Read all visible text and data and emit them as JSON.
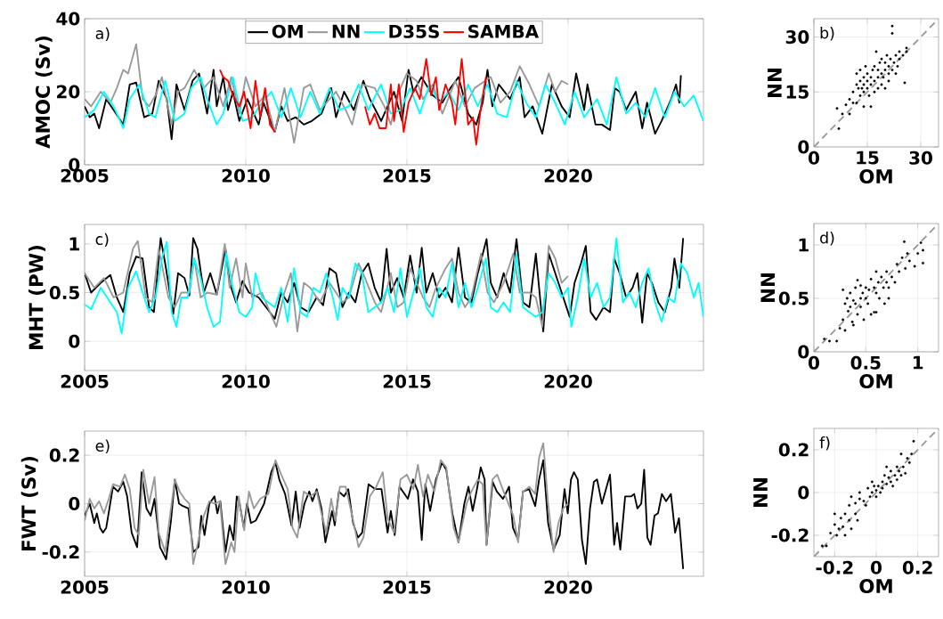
{
  "chart_data": [
    {
      "type": "line",
      "ylabel": "AMOC (Sv)",
      "annotations": [
        "a)"
      ],
      "xlim": [
        2005,
        2024.2
      ],
      "xticks": [
        2005,
        2010,
        2015,
        2020
      ],
      "ylim": [
        0,
        40
      ],
      "yticks": [
        0,
        20,
        40
      ],
      "grid": true,
      "legend": "top",
      "series": [
        {
          "name": "OM",
          "color": "#000000",
          "x": [
            2005.0,
            2005.16,
            2005.3,
            2005.45,
            2005.67,
            2005.9,
            2006.2,
            2006.4,
            2006.6,
            2006.85,
            2007.1,
            2007.3,
            2007.55,
            2007.7,
            2007.85,
            2008.1,
            2008.35,
            2008.55,
            2008.8,
            2009.0,
            2009.1,
            2009.3,
            2009.45,
            2009.6,
            2009.8,
            2010.05,
            2010.4,
            2010.55,
            2010.9,
            2011.1,
            2011.3,
            2011.55,
            2011.8,
            2012.05,
            2012.35,
            2012.65,
            2012.8,
            2013.05,
            2013.35,
            2013.65,
            2013.85,
            2014.2,
            2014.6,
            2014.85,
            2015.05,
            2015.2,
            2015.45,
            2015.8,
            2016.1,
            2016.35,
            2016.6,
            2016.9,
            2017.15,
            2017.35,
            2017.5,
            2017.65,
            2017.85,
            2018.2,
            2018.5,
            2018.65,
            2018.9,
            2019.2,
            2019.5,
            2019.8,
            2020.05,
            2020.25,
            2020.5,
            2020.6,
            2020.85,
            2021.05,
            2021.3,
            2021.45,
            2021.6,
            2021.8,
            2022.1,
            2022.3,
            2022.45,
            2022.7,
            2022.9,
            2023.2,
            2023.35,
            2023.45,
            2023.5
          ],
          "values": [
            16,
            13,
            14,
            10,
            18,
            15,
            11,
            22,
            22.5,
            13,
            14,
            23,
            18,
            7,
            22,
            15,
            23,
            25,
            14,
            26,
            16,
            24,
            15,
            20,
            12,
            18,
            11,
            17,
            9,
            16,
            12,
            13,
            11,
            12,
            14,
            21,
            13,
            20,
            15,
            23,
            18,
            12,
            20,
            12,
            26,
            20,
            24,
            19,
            17,
            21,
            24,
            14,
            11,
            17,
            26,
            16,
            22,
            18,
            24,
            13,
            16,
            8.5,
            22,
            16,
            13,
            25,
            15,
            22,
            11,
            11,
            9.5,
            21,
            20,
            15,
            20,
            10,
            17,
            8.5,
            12,
            18,
            22,
            17,
            24.5
          ]
        },
        {
          "name": "NN",
          "color": "#999999",
          "x": [
            2005.0,
            2005.2,
            2005.5,
            2005.8,
            2006.0,
            2006.2,
            2006.35,
            2006.6,
            2006.8,
            2007.0,
            2007.2,
            2007.4,
            2007.7,
            2007.9,
            2008.1,
            2008.4,
            2008.7,
            2009.0,
            2009.3,
            2009.55,
            2009.8,
            2010.0,
            2010.3,
            2010.6,
            2010.9,
            2011.2,
            2011.5,
            2011.8,
            2012.0,
            2012.3,
            2012.5,
            2012.8,
            2013.1,
            2013.3,
            2013.6,
            2014.0,
            2014.3,
            2014.5,
            2014.7,
            2015.0,
            2015.3,
            2015.5,
            2015.8,
            2016.1,
            2016.5,
            2016.8,
            2017.1,
            2017.6,
            2017.9,
            2018.2,
            2018.5,
            2018.8,
            2019.1,
            2019.4,
            2019.6,
            2019.8,
            2020.0
          ],
          "values": [
            18,
            16,
            20,
            17,
            21,
            26,
            25,
            33,
            18,
            16,
            19,
            24,
            11,
            20,
            21,
            26,
            21,
            24,
            16,
            24,
            14,
            24,
            16,
            19,
            9,
            21,
            6,
            21,
            22,
            15,
            17,
            20,
            15,
            11,
            22,
            21,
            16,
            11,
            19,
            25,
            23,
            18,
            22,
            14,
            23,
            16,
            21,
            24,
            17,
            20,
            27,
            22,
            16,
            25,
            20,
            23,
            22
          ]
        },
        {
          "name": "D35S",
          "color": "#00ffff",
          "x": [
            2005.0,
            2005.3,
            2005.6,
            2005.9,
            2006.2,
            2006.4,
            2006.7,
            2007.0,
            2007.2,
            2007.5,
            2007.8,
            2008.1,
            2008.3,
            2008.6,
            2008.8,
            2009.1,
            2009.3,
            2009.6,
            2009.9,
            2010.2,
            2010.5,
            2010.8,
            2011.1,
            2011.4,
            2011.7,
            2012.0,
            2012.3,
            2012.6,
            2012.9,
            2013.2,
            2013.5,
            2013.8,
            2014.2,
            2014.5,
            2014.8,
            2015.1,
            2015.4,
            2015.7,
            2016.0,
            2016.3,
            2016.6,
            2016.9,
            2017.2,
            2017.5,
            2017.8,
            2018.1,
            2018.4,
            2018.7,
            2019.0,
            2019.3,
            2019.6,
            2019.9,
            2020.2,
            2020.5,
            2020.9,
            2021.2,
            2021.5,
            2021.8,
            2022.1,
            2022.4,
            2022.7,
            2023.0,
            2023.3,
            2023.6,
            2023.9,
            2024.2
          ],
          "values": [
            13,
            15,
            20,
            16,
            10,
            18,
            22,
            14,
            13,
            23,
            12,
            14,
            21,
            24,
            18,
            11,
            14,
            24,
            12,
            13,
            17,
            20,
            13,
            21,
            13,
            20,
            14,
            21,
            15,
            16,
            22,
            15,
            22,
            14,
            15,
            21,
            14,
            22,
            17,
            20,
            15,
            22,
            16,
            22,
            14,
            13,
            23,
            17,
            13,
            22,
            17,
            11,
            20,
            13,
            18,
            11,
            24,
            14,
            17,
            13,
            21,
            13,
            20,
            16,
            19,
            12
          ]
        },
        {
          "name": "SAMBA",
          "color": "#ff0000",
          "x": [
            2009.2,
            2009.3,
            2009.45,
            2009.6,
            2009.8,
            2009.95,
            2010.15,
            2010.3,
            2010.45,
            2010.6,
            2010.75,
            2010.9,
            2012.0,
            2013.7,
            2013.85,
            2014.0,
            2014.15,
            2014.35,
            2014.5,
            2014.6,
            2014.75,
            2014.9,
            2015.05,
            2015.25,
            2015.4,
            2015.6,
            2015.75,
            2015.9,
            2016.0,
            2016.2,
            2016.4,
            2016.5,
            2016.7,
            2016.9,
            2017.05,
            2017.15,
            2017.3,
            2017.45
          ],
          "values": [
            26,
            24,
            23,
            19,
            16,
            20,
            10,
            23,
            13,
            21,
            11,
            9,
            null,
            16,
            11,
            14,
            10,
            10,
            22,
            12,
            22,
            9,
            17,
            21,
            18,
            29,
            19,
            24,
            15,
            22,
            17,
            11,
            29,
            11,
            13,
            5.5,
            16,
            24
          ]
        }
      ]
    },
    {
      "type": "scatter",
      "xlabel": "OM",
      "ylabel": "NN",
      "annotations": [
        "b)"
      ],
      "xlim": [
        0,
        35
      ],
      "xticks": [
        0,
        15,
        30
      ],
      "ylim": [
        0,
        35
      ],
      "yticks": [
        0,
        15,
        30
      ],
      "grid": true,
      "series": [
        {
          "color": "#000000",
          "marker": "circle",
          "x": [
            6.5,
            7,
            8,
            9,
            10,
            10,
            11,
            11,
            12,
            12,
            12.5,
            13,
            13,
            13,
            13.5,
            14,
            14,
            14,
            14.5,
            15,
            15,
            15,
            15.5,
            16,
            16,
            16,
            16.5,
            17,
            17,
            17,
            17.5,
            18,
            18,
            18,
            18.5,
            19,
            19,
            19,
            19.5,
            20,
            20,
            20,
            20.5,
            21,
            21,
            21,
            21.5,
            22,
            22,
            22,
            22.5,
            23,
            23,
            23.5,
            24,
            24,
            25,
            25.5,
            26,
            26,
            14,
            12
          ],
          "values": [
            10.5,
            5,
            9,
            11.5,
            9,
            13,
            12,
            15,
            17,
            20,
            16,
            14,
            18,
            21,
            16,
            15,
            17,
            19,
            22,
            16,
            18,
            20,
            14,
            11,
            17,
            19,
            21,
            15,
            18,
            22,
            26,
            16,
            19,
            21,
            23,
            17,
            20,
            24,
            19,
            16,
            21,
            23,
            25,
            18,
            20,
            22,
            24,
            21,
            33,
            31,
            23,
            20,
            25,
            22,
            24,
            26,
            25,
            17.5,
            27,
            26,
            11,
            12
          ]
        },
        {
          "type": "line",
          "color": "#999999",
          "line_style": "dashed",
          "marker": "none",
          "x": [
            0,
            35
          ],
          "values": [
            0,
            35
          ]
        }
      ]
    },
    {
      "type": "line",
      "ylabel": "MHT (PW)",
      "annotations": [
        "c)"
      ],
      "xlim": [
        2005,
        2024.2
      ],
      "xticks": [
        2005,
        2010,
        2015,
        2020
      ],
      "ylim": [
        -0.3,
        1.2
      ],
      "yticks": [
        0,
        0.5,
        1
      ],
      "grid": true,
      "series": [
        {
          "color": "#000000",
          "x": [
            2005.0,
            2005.2,
            2005.5,
            2005.8,
            2006.0,
            2006.2,
            2006.4,
            2006.6,
            2006.8,
            2007.0,
            2007.15,
            2007.36,
            2007.5,
            2007.75,
            2007.9,
            2008.1,
            2008.25,
            2008.37,
            2008.5,
            2008.7,
            2008.9,
            2009.1,
            2009.37,
            2009.5,
            2009.7,
            2009.9,
            2010.1,
            2010.4,
            2010.7,
            2010.9,
            2011.1,
            2011.3,
            2011.5,
            2011.7,
            2011.95,
            2012.2,
            2012.4,
            2012.6,
            2012.8,
            2013.0,
            2013.2,
            2013.4,
            2013.6,
            2013.8,
            2014.0,
            2014.2,
            2014.37,
            2014.5,
            2014.7,
            2014.9,
            2015.1,
            2015.3,
            2015.46,
            2015.6,
            2015.8,
            2016.0,
            2016.2,
            2016.4,
            2016.6,
            2016.8,
            2017.0,
            2017.2,
            2017.47,
            2017.6,
            2017.8,
            2018.0,
            2018.2,
            2018.4,
            2018.6,
            2018.8,
            2019.0,
            2019.23,
            2019.4,
            2019.6,
            2019.8,
            2020.05,
            2020.2,
            2020.4,
            2020.55,
            2020.7,
            2020.87,
            2021.1,
            2021.3,
            2021.43,
            2021.6,
            2021.8,
            2022.0,
            2022.15,
            2022.3,
            2022.45,
            2022.6,
            2022.8,
            2023.0,
            2023.2,
            2023.3,
            2023.45,
            2023.57
          ],
          "values": [
            0.7,
            0.5,
            0.6,
            0.68,
            0.45,
            0.3,
            0.7,
            0.87,
            0.85,
            0.35,
            0.3,
            1.06,
            0.8,
            0.28,
            0.7,
            0.65,
            0.47,
            1.06,
            0.95,
            0.5,
            0.7,
            0.48,
            0.95,
            0.6,
            0.4,
            0.62,
            0.5,
            0.45,
            0.32,
            0.23,
            0.5,
            0.4,
            0.6,
            0.35,
            0.3,
            0.45,
            0.37,
            0.75,
            0.7,
            0.35,
            0.5,
            0.4,
            0.7,
            0.8,
            0.55,
            0.4,
            0.95,
            0.5,
            0.65,
            0.45,
            0.88,
            0.5,
            0.96,
            0.5,
            0.7,
            0.45,
            0.55,
            0.4,
            0.96,
            0.45,
            0.4,
            0.7,
            1.05,
            0.6,
            0.45,
            0.7,
            0.5,
            1.05,
            0.4,
            0.35,
            0.9,
            0.1,
            0.9,
            0.7,
            0.5,
            0.25,
            0.6,
            0.8,
            0.98,
            0.3,
            0.22,
            0.35,
            0.3,
            0.85,
            0.7,
            0.45,
            0.55,
            0.7,
            0.19,
            0.7,
            0.6,
            0.4,
            0.3,
            0.55,
            0.85,
            0.55,
            1.06
          ]
        },
        {
          "color": "#999999",
          "x": [
            2005.0,
            2005.3,
            2005.6,
            2005.9,
            2006.2,
            2006.5,
            2006.65,
            2006.9,
            2007.1,
            2007.3,
            2007.6,
            2007.8,
            2008.0,
            2008.25,
            2008.4,
            2008.6,
            2008.8,
            2009.1,
            2009.35,
            2009.5,
            2009.7,
            2009.9,
            2010.0,
            2010.2,
            2010.5,
            2010.75,
            2010.95,
            2011.2,
            2011.4,
            2011.6,
            2011.8,
            2012.0,
            2012.3,
            2012.6,
            2012.8,
            2013.0,
            2013.2,
            2013.5,
            2013.7,
            2014.0,
            2014.2,
            2014.5,
            2014.7,
            2014.9,
            2015.1,
            2015.3,
            2015.5,
            2015.7,
            2015.9,
            2016.2,
            2016.4,
            2016.6,
            2016.8,
            2017.0,
            2017.3,
            2017.5,
            2017.7,
            2018.0,
            2018.3,
            2018.5,
            2018.8,
            2019.0,
            2019.2,
            2019.4,
            2019.6,
            2019.8,
            2020.0
          ],
          "values": [
            0.7,
            0.55,
            0.65,
            0.45,
            0.5,
            0.95,
            1.03,
            0.45,
            0.4,
            0.95,
            0.45,
            0.35,
            0.5,
            0.5,
            0.85,
            0.45,
            0.5,
            0.48,
            1.0,
            0.55,
            0.85,
            0.45,
            0.8,
            0.45,
            0.5,
            0.3,
            0.15,
            0.5,
            0.7,
            0.1,
            0.6,
            0.55,
            0.4,
            0.6,
            0.5,
            0.4,
            0.45,
            0.8,
            0.65,
            0.4,
            0.3,
            0.7,
            0.35,
            0.4,
            0.75,
            0.6,
            0.45,
            0.35,
            0.55,
            0.75,
            0.85,
            0.5,
            0.35,
            0.45,
            0.9,
            0.5,
            0.4,
            0.6,
            0.9,
            0.5,
            0.5,
            0.45,
            0.15,
            0.98,
            0.85,
            0.6,
            0.67
          ]
        },
        {
          "color": "#00ffff",
          "x": [
            2005.0,
            2005.2,
            2005.5,
            2005.8,
            2006.0,
            2006.15,
            2006.35,
            2006.6,
            2006.8,
            2007.0,
            2007.2,
            2007.4,
            2007.55,
            2007.7,
            2007.85,
            2008.0,
            2008.2,
            2008.4,
            2008.6,
            2008.8,
            2009.0,
            2009.2,
            2009.4,
            2009.6,
            2009.8,
            2010.0,
            2010.2,
            2010.3,
            2010.5,
            2010.7,
            2010.9,
            2011.1,
            2011.3,
            2011.5,
            2011.7,
            2011.9,
            2012.1,
            2012.3,
            2012.5,
            2012.7,
            2012.85,
            2013.0,
            2013.2,
            2013.4,
            2013.6,
            2013.8,
            2014.0,
            2014.2,
            2014.4,
            2014.6,
            2014.8,
            2015.0,
            2015.2,
            2015.4,
            2015.6,
            2015.8,
            2016.0,
            2016.2,
            2016.4,
            2016.6,
            2016.8,
            2017.0,
            2017.2,
            2017.45,
            2017.6,
            2017.8,
            2018.0,
            2018.2,
            2018.4,
            2018.6,
            2018.8,
            2019.0,
            2019.2,
            2019.4,
            2019.6,
            2019.8,
            2020.0,
            2020.1,
            2020.3,
            2020.5,
            2020.7,
            2020.9,
            2021.1,
            2021.3,
            2021.5,
            2021.7,
            2021.9,
            2022.1,
            2022.3,
            2022.5,
            2022.7,
            2022.9,
            2023.1,
            2023.3,
            2023.5,
            2023.7,
            2023.9,
            2024.05,
            2024.2
          ],
          "values": [
            0.38,
            0.33,
            0.55,
            0.4,
            0.3,
            0.08,
            0.55,
            0.72,
            0.5,
            0.3,
            0.45,
            0.85,
            1.02,
            0.3,
            0.15,
            0.45,
            0.45,
            0.85,
            0.65,
            0.35,
            0.15,
            0.2,
            0.9,
            0.55,
            0.3,
            0.25,
            0.35,
            0.7,
            0.45,
            0.4,
            0.35,
            0.55,
            0.2,
            0.75,
            0.3,
            0.25,
            0.55,
            0.5,
            0.7,
            0.45,
            0.22,
            0.55,
            0.45,
            0.8,
            0.7,
            0.3,
            0.35,
            0.4,
            0.55,
            0.3,
            0.75,
            0.25,
            0.5,
            0.75,
            0.35,
            0.25,
            0.55,
            0.45,
            0.8,
            0.35,
            0.6,
            0.35,
            0.55,
            0.85,
            0.35,
            0.3,
            0.4,
            0.3,
            0.9,
            0.35,
            0.3,
            0.25,
            0.3,
            0.7,
            0.6,
            0.45,
            0.55,
            0.15,
            0.45,
            0.85,
            0.45,
            0.6,
            0.35,
            0.45,
            1.06,
            0.4,
            0.5,
            0.35,
            0.6,
            0.75,
            0.4,
            0.2,
            0.45,
            0.4,
            0.8,
            0.7,
            0.45,
            0.6,
            0.25
          ]
        }
      ]
    },
    {
      "type": "scatter",
      "xlabel": "OM",
      "ylabel": "NN",
      "annotations": [
        "d)"
      ],
      "xlim": [
        0,
        1.2
      ],
      "xticks": [
        0,
        0.5,
        1
      ],
      "ylim": [
        0,
        1.2
      ],
      "yticks": [
        0,
        0.5,
        1
      ],
      "grid": true,
      "series": [
        {
          "color": "#000000",
          "marker": "circle",
          "x": [
            0.1,
            0.15,
            0.22,
            0.25,
            0.28,
            0.28,
            0.3,
            0.32,
            0.33,
            0.35,
            0.35,
            0.37,
            0.38,
            0.4,
            0.4,
            0.42,
            0.42,
            0.45,
            0.45,
            0.47,
            0.48,
            0.5,
            0.5,
            0.52,
            0.53,
            0.55,
            0.55,
            0.58,
            0.58,
            0.6,
            0.6,
            0.62,
            0.63,
            0.65,
            0.67,
            0.68,
            0.7,
            0.7,
            0.72,
            0.72,
            0.75,
            0.78,
            0.8,
            0.82,
            0.85,
            0.87,
            0.88,
            0.9,
            0.92,
            0.97,
            1.0,
            1.03,
            1.05,
            1.05,
            0.45,
            0.38,
            0.6,
            0.3
          ],
          "values": [
            0.12,
            0.1,
            0.1,
            0.22,
            0.3,
            0.58,
            0.45,
            0.5,
            0.38,
            0.42,
            0.55,
            0.28,
            0.48,
            0.6,
            0.45,
            0.67,
            0.35,
            0.5,
            0.42,
            0.55,
            0.3,
            0.5,
            0.6,
            0.45,
            0.58,
            0.68,
            0.35,
            0.6,
            0.37,
            0.55,
            0.75,
            0.65,
            0.5,
            0.7,
            0.6,
            0.45,
            0.75,
            0.65,
            0.5,
            0.6,
            0.7,
            0.65,
            0.82,
            0.75,
            0.88,
            1.03,
            0.78,
            0.92,
            0.85,
            0.8,
            0.92,
            1.02,
            0.95,
            0.83,
            0.62,
            0.25,
            0.37,
            0.2
          ]
        },
        {
          "type": "line",
          "color": "#999999",
          "line_style": "dashed",
          "marker": "none",
          "x": [
            0,
            1.2
          ],
          "values": [
            0,
            1.2
          ]
        }
      ]
    },
    {
      "type": "line",
      "ylabel": "FWT (Sv)",
      "annotations": [
        "e)"
      ],
      "xlim": [
        2005,
        2024.2
      ],
      "xticks": [
        2005,
        2010,
        2015,
        2020
      ],
      "ylim": [
        -0.3,
        0.3
      ],
      "yticks": [
        -0.2,
        0,
        0.2
      ],
      "grid": true,
      "series": [
        {
          "color": "#000000",
          "x": [
            2005.0,
            2005.16,
            2005.3,
            2005.38,
            2005.48,
            2005.57,
            2005.67,
            2005.77,
            2005.88,
            2006.04,
            2006.2,
            2006.32,
            2006.46,
            2006.63,
            2006.77,
            2006.92,
            2007.05,
            2007.17,
            2007.34,
            2007.53,
            2007.68,
            2007.8,
            2007.93,
            2008.05,
            2008.22,
            2008.37,
            2008.53,
            2008.62,
            2008.72,
            2008.87,
            2009.03,
            2009.12,
            2009.21,
            2009.37,
            2009.5,
            2009.62,
            2009.72,
            2009.81,
            2009.94,
            2010.04,
            2010.16,
            2010.31,
            2010.57,
            2010.79,
            2010.92,
            2011.04,
            2011.22,
            2011.42,
            2011.55,
            2011.67,
            2011.82,
            2011.97,
            2012.07,
            2012.2,
            2012.35,
            2012.47,
            2012.68,
            2012.76,
            2012.89,
            2013.05,
            2013.18,
            2013.33,
            2013.48,
            2013.61,
            2013.81,
            2014.02,
            2014.21,
            2014.4,
            2014.5,
            2014.62,
            2014.77,
            2015.03,
            2015.19,
            2015.34,
            2015.46,
            2015.57,
            2015.72,
            2015.9,
            2016.09,
            2016.22,
            2016.41,
            2016.6,
            2016.78,
            2016.91,
            2017.04,
            2017.16,
            2017.29,
            2017.41,
            2017.47,
            2017.66,
            2017.79,
            2017.98,
            2018.17,
            2018.29,
            2018.45,
            2018.6,
            2018.79,
            2018.98,
            2019.1,
            2019.23,
            2019.38,
            2019.55,
            2019.74,
            2019.89,
            2019.99,
            2020.09,
            2020.18,
            2020.3,
            2020.43,
            2020.55,
            2020.68,
            2020.8,
            2020.9,
            2021.05,
            2021.3,
            2021.43,
            2021.52,
            2021.62,
            2021.77,
            2021.96,
            2022.05,
            2022.15,
            2022.27,
            2022.36,
            2022.46,
            2022.56,
            2022.68,
            2022.79,
            2022.91,
            2023.04,
            2023.19,
            2023.32,
            2023.44,
            2023.57
          ],
          "values": [
            -0.05,
            0.0,
            -0.08,
            -0.04,
            -0.1,
            -0.12,
            -0.1,
            -0.02,
            0.07,
            0.05,
            0.09,
            0.03,
            -0.12,
            -0.18,
            0.13,
            -0.02,
            -0.05,
            0.02,
            -0.18,
            -0.23,
            -0.07,
            0.1,
            0.0,
            -0.01,
            -0.02,
            -0.2,
            -0.18,
            -0.05,
            -0.13,
            0.0,
            0.03,
            -0.04,
            0.01,
            -0.2,
            -0.09,
            -0.15,
            0.03,
            0.0,
            -0.1,
            0.0,
            -0.08,
            -0.07,
            0.0,
            0.13,
            0.17,
            0.1,
            0.04,
            -0.09,
            0.05,
            -0.1,
            0.0,
            0.05,
            0.01,
            0.06,
            -0.02,
            -0.16,
            -0.03,
            -0.09,
            0.05,
            0.03,
            0.06,
            -0.08,
            -0.14,
            -0.12,
            0.08,
            0.06,
            0.06,
            -0.12,
            -0.03,
            -0.13,
            0.07,
            0.02,
            0.1,
            0.05,
            -0.15,
            0.08,
            -0.03,
            0.1,
            0.17,
            0.14,
            -0.04,
            -0.16,
            0.0,
            0.07,
            -0.03,
            0.05,
            0.15,
            0.1,
            -0.17,
            0.09,
            0.05,
            0.02,
            0.07,
            -0.1,
            -0.15,
            0.05,
            0.06,
            -0.01,
            0.1,
            0.18,
            -0.08,
            -0.19,
            -0.13,
            0.06,
            -0.04,
            0.1,
            0.13,
            0.1,
            -0.15,
            -0.25,
            -0.02,
            0.09,
            0.1,
            0.0,
            0.12,
            -0.17,
            -0.08,
            -0.19,
            0.03,
            0.03,
            0.04,
            -0.02,
            0.0,
            0.14,
            -0.14,
            -0.17,
            -0.05,
            -0.04,
            0.04,
            0.01,
            0.04,
            -0.12,
            -0.06,
            -0.27
          ]
        },
        {
          "color": "#999999",
          "x": [
            2005.0,
            2005.16,
            2005.3,
            2005.45,
            2005.6,
            2005.75,
            2005.88,
            2006.1,
            2006.25,
            2006.4,
            2006.55,
            2006.68,
            2006.82,
            2007.0,
            2007.17,
            2007.3,
            2007.5,
            2007.65,
            2007.8,
            2007.95,
            2008.1,
            2008.25,
            2008.37,
            2008.55,
            2008.7,
            2008.87,
            2009.03,
            2009.2,
            2009.37,
            2009.55,
            2009.65,
            2009.78,
            2009.95,
            2010.1,
            2010.25,
            2010.45,
            2010.7,
            2010.92,
            2011.1,
            2011.3,
            2011.45,
            2011.6,
            2011.8,
            2012.0,
            2012.2,
            2012.35,
            2012.5,
            2012.65,
            2012.78,
            2012.92,
            2013.1,
            2013.3,
            2013.5,
            2013.65,
            2013.85,
            2014.05,
            2014.25,
            2014.4,
            2014.6,
            2014.8,
            2015.0,
            2015.2,
            2015.34,
            2015.5,
            2015.65,
            2015.85,
            2016.05,
            2016.22,
            2016.45,
            2016.6,
            2016.85,
            2017.0,
            2017.2,
            2017.35,
            2017.47,
            2017.65,
            2017.8,
            2018.0,
            2018.15,
            2018.3,
            2018.45,
            2018.6,
            2018.8,
            2018.98,
            2019.1,
            2019.23,
            2019.38,
            2019.55,
            2019.7,
            2019.85,
            2020.0
          ],
          "values": [
            -0.07,
            0.02,
            -0.02,
            0.01,
            -0.04,
            0.02,
            0.08,
            0.07,
            0.12,
            0.06,
            -0.1,
            -0.13,
            0.14,
            0.0,
            0.11,
            -0.12,
            -0.2,
            -0.05,
            0.1,
            0.05,
            0.02,
            0.0,
            -0.25,
            -0.14,
            -0.05,
            0.01,
            0.0,
            0.01,
            -0.25,
            -0.16,
            -0.2,
            0.03,
            -0.11,
            0.05,
            -0.02,
            0.02,
            0.04,
            0.18,
            0.12,
            0.06,
            -0.1,
            -0.14,
            0.05,
            0.03,
            0.05,
            -0.04,
            -0.12,
            0.02,
            -0.07,
            0.07,
            0.07,
            -0.05,
            -0.18,
            -0.14,
            0.03,
            0.07,
            0.13,
            -0.06,
            -0.12,
            0.1,
            0.12,
            0.06,
            0.16,
            0.03,
            0.12,
            0.05,
            0.18,
            0.15,
            -0.1,
            -0.16,
            0.0,
            0.05,
            0.1,
            0.08,
            -0.17,
            0.1,
            0.12,
            0.05,
            0.0,
            -0.05,
            -0.16,
            0.05,
            0.07,
            0.04,
            0.19,
            0.25,
            0.0,
            -0.2,
            -0.08,
            -0.02,
            0.0
          ]
        }
      ]
    },
    {
      "type": "scatter",
      "xlabel": "OM",
      "ylabel": "NN",
      "annotations": [
        "f)"
      ],
      "xlim": [
        -0.3,
        0.3
      ],
      "xticks": [
        -0.2,
        0,
        0.2
      ],
      "ylim": [
        -0.3,
        0.3
      ],
      "yticks": [
        -0.2,
        0,
        0.2
      ],
      "grid": true,
      "series": [
        {
          "color": "#000000",
          "marker": "circle",
          "x": [
            -0.26,
            -0.24,
            -0.22,
            -0.2,
            -0.19,
            -0.18,
            -0.17,
            -0.16,
            -0.15,
            -0.15,
            -0.13,
            -0.13,
            -0.12,
            -0.12,
            -0.1,
            -0.1,
            -0.09,
            -0.08,
            -0.08,
            -0.06,
            -0.05,
            -0.04,
            -0.03,
            -0.02,
            -0.01,
            0.0,
            0.0,
            0.01,
            0.02,
            0.03,
            0.03,
            0.04,
            0.05,
            0.05,
            0.06,
            0.07,
            0.07,
            0.08,
            0.09,
            0.1,
            0.1,
            0.11,
            0.12,
            0.13,
            0.14,
            0.15,
            0.16,
            0.17,
            0.18,
            0.12,
            -0.02,
            -0.2
          ],
          "values": [
            -0.25,
            -0.25,
            -0.19,
            -0.15,
            -0.2,
            -0.17,
            -0.12,
            -0.16,
            -0.1,
            -0.2,
            -0.06,
            -0.13,
            -0.17,
            -0.02,
            -0.1,
            -0.05,
            -0.13,
            -0.03,
            0.0,
            -0.04,
            -0.06,
            0.02,
            -0.02,
            0.0,
            0.03,
            0.01,
            -0.02,
            0.03,
            0.0,
            0.05,
            0.02,
            0.08,
            0.04,
            0.12,
            0.07,
            0.05,
            0.1,
            0.03,
            0.08,
            0.12,
            0.06,
            0.1,
            0.08,
            0.12,
            0.09,
            0.16,
            0.14,
            0.18,
            0.24,
            0.18,
            0.05,
            -0.1
          ]
        },
        {
          "type": "line",
          "color": "#999999",
          "line_style": "dashed",
          "marker": "none",
          "x": [
            -0.3,
            0.3
          ],
          "values": [
            -0.3,
            0.3
          ]
        }
      ]
    }
  ]
}
